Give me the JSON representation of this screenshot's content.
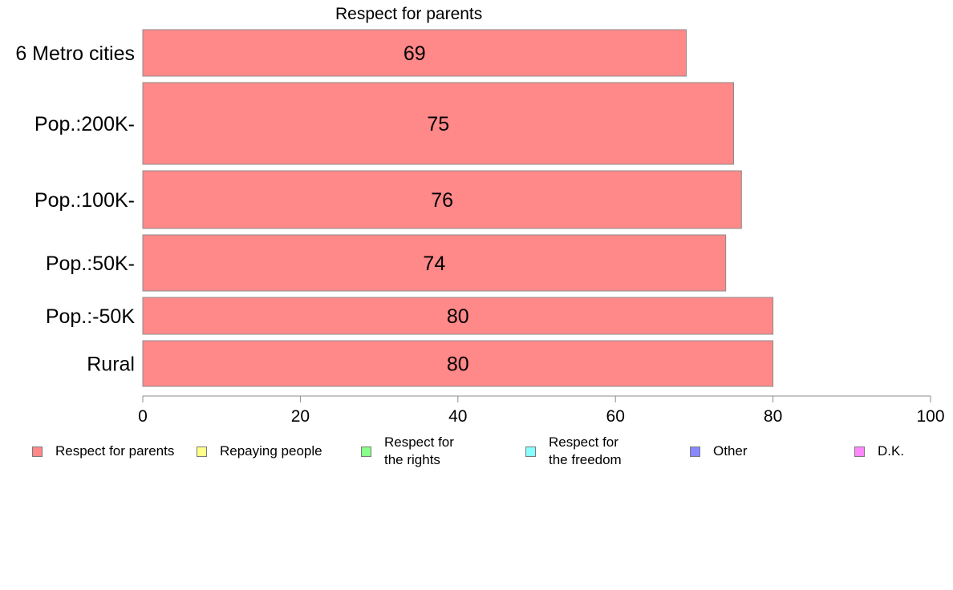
{
  "chart_data": {
    "type": "bar",
    "orientation": "horizontal",
    "title": "Respect for parents",
    "categories": [
      "6 Metro cities",
      "Pop.:200K-",
      "Pop.:100K-",
      "Pop.:50K-",
      "Pop.:-50K",
      "Rural"
    ],
    "series": [
      {
        "name": "Respect for parents",
        "values": [
          69,
          75,
          76,
          74,
          80,
          80
        ],
        "color": "#ff8888"
      }
    ],
    "data_labels": [
      "69",
      "75",
      "76",
      "74",
      "80",
      "80"
    ],
    "xlim": [
      0,
      100
    ],
    "xticks": [
      0,
      20,
      40,
      60,
      80,
      100
    ],
    "xtick_labels": [
      "0",
      "20",
      "40",
      "60",
      "80",
      "100"
    ],
    "grid": false,
    "legend_position": "bottom",
    "legend": [
      {
        "label_lines": [
          "Respect for parents"
        ],
        "color": "#ff8888"
      },
      {
        "label_lines": [
          "Repaying people"
        ],
        "color": "#ffff88"
      },
      {
        "label_lines": [
          "Respect for",
          "the rights"
        ],
        "color": "#88ff88"
      },
      {
        "label_lines": [
          "Respect for",
          "the freedom"
        ],
        "color": "#88ffff"
      },
      {
        "label_lines": [
          "Other"
        ],
        "color": "#8888ff"
      },
      {
        "label_lines": [
          "D.K."
        ],
        "color": "#ff88ff"
      }
    ]
  }
}
